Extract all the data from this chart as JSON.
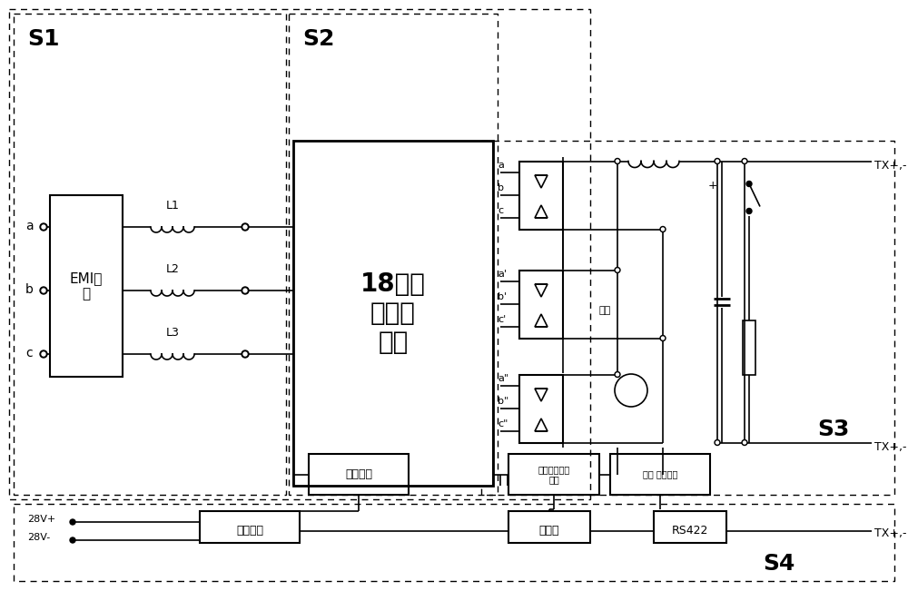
{
  "bg_color": "#ffffff",
  "lc": "#000000",
  "fig_width": 10.0,
  "fig_height": 6.51,
  "dpi": 100,
  "s1_label": "S1",
  "s2_label": "S2",
  "s3_label": "S3",
  "s4_label": "S4",
  "emi_label": "EMI滤\n波",
  "transformer_label": "18脉冲\n自耦变\n压器",
  "sync_label": "同步电路",
  "aux_power_label": "辅助电源",
  "mcu_label": "单片机",
  "rs422_label": "RS422",
  "phase_ctrl_label": "可控硅移相及\n控制",
  "voltage_detect_label": "电压 电流检测",
  "l1_label": "L1",
  "l2_label": "L2",
  "l3_label": "L3",
  "tx_label": "TX+,-",
  "label_28v_plus": "28V+",
  "label_28v_minus": "28V-",
  "label_display": "显示",
  "label_a": "a",
  "label_b": "b",
  "label_c": "c",
  "label_a_prime": "a'",
  "label_b_prime": "b'",
  "label_c_prime": "c'",
  "label_a_double": "a\"",
  "label_b_double": "b\"",
  "label_c_double": "c\""
}
